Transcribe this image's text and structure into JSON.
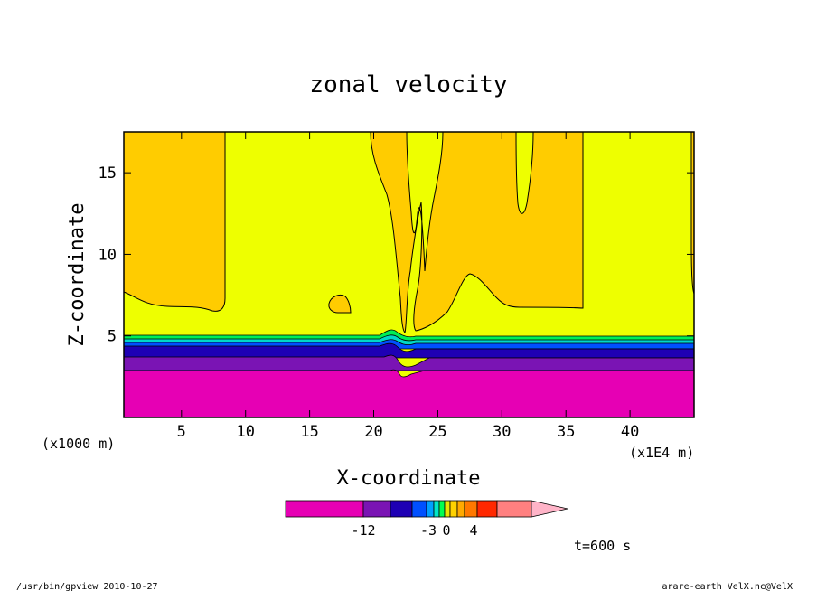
{
  "chart_data": {
    "type": "heatmap",
    "title": "zonal velocity",
    "xlabel": "X-coordinate",
    "ylabel": "Z-coordinate",
    "x_unit_label": "(x1000 m)",
    "x_unit_label_right": "(x1E4 m)",
    "xlim": [
      0.5,
      45
    ],
    "ylim": [
      0,
      17.5
    ],
    "x_ticks": [
      5,
      10,
      15,
      20,
      25,
      30,
      35,
      40
    ],
    "x_tick_labels": [
      "5",
      "10",
      "15",
      "20",
      "25",
      "30",
      "35",
      "40"
    ],
    "y_ticks": [
      5,
      10,
      15
    ],
    "y_tick_labels": [
      "5",
      "10",
      "15"
    ],
    "colorbar": {
      "colors": [
        "#e600b4",
        "#7a14b4",
        "#1e00b4",
        "#0050ff",
        "#00a0ff",
        "#00e6c8",
        "#00ff50",
        "#e6e600",
        "#ffd200",
        "#ffaa00",
        "#ff7800",
        "#ff2800",
        "#ff8080",
        "#ffb4c8"
      ],
      "labels": [
        "-12",
        "-3",
        "0",
        "4"
      ],
      "label_values": [
        -12,
        -3,
        0,
        4
      ]
    },
    "regions": [
      {
        "color": "#e600b4",
        "z": [
          0,
          2.8
        ],
        "desc": "lowest band"
      },
      {
        "color": "#7a14b4",
        "z": [
          2.8,
          3.6
        ]
      },
      {
        "color": "#1e00b4",
        "z": [
          3.6,
          4.2
        ]
      },
      {
        "color": "#0050ff",
        "z": [
          4.2,
          4.5
        ]
      },
      {
        "color": "#00e6c8",
        "z": [
          4.5,
          4.8
        ]
      },
      {
        "color": "#00ff50",
        "z": [
          4.8,
          5.0
        ]
      },
      {
        "color": "#e6ff00",
        "z": [
          5.0,
          17.5
        ]
      },
      {
        "color": "#ffcc00",
        "z": [
          7,
          17.5
        ]
      }
    ]
  },
  "annotation": {
    "time": "t=600 s",
    "footer_left": "/usr/bin/gpview  2010-10-27",
    "footer_right": "arare-earth_VelX.nc@VelX"
  }
}
